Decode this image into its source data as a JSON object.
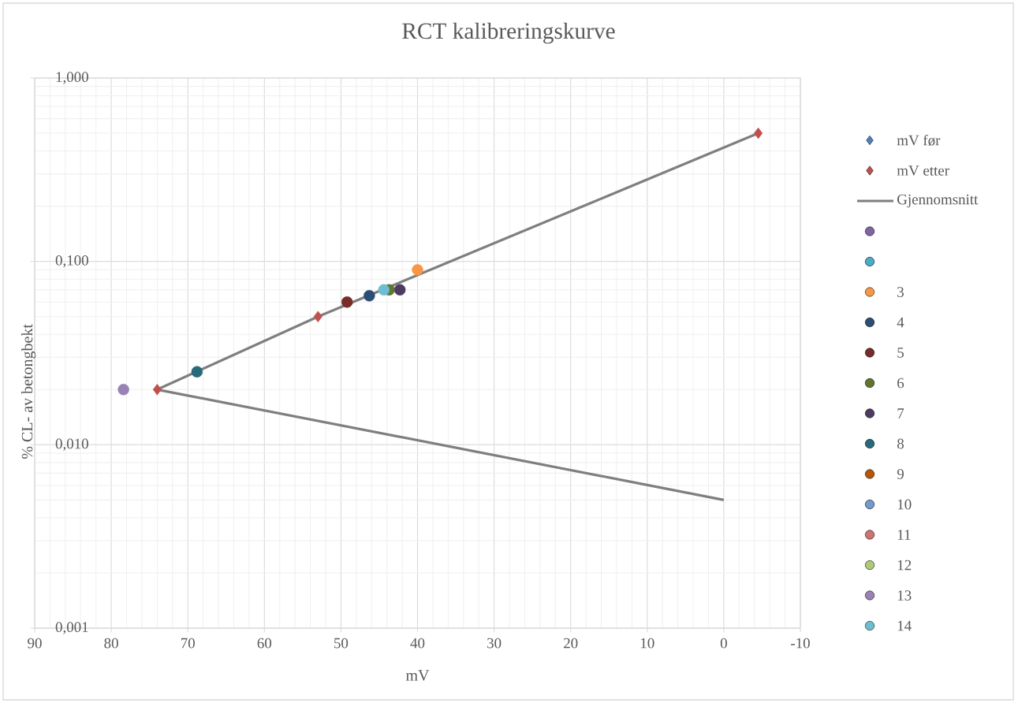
{
  "chart_data": {
    "type": "scatter",
    "title": "RCT kalibreringskurve",
    "xlabel": "mV",
    "ylabel": "% CL- av betongbekt",
    "log": "y",
    "grid": true,
    "legend": "right",
    "xlim": [
      90,
      -10
    ],
    "xticks": [
      90,
      80,
      70,
      60,
      50,
      40,
      30,
      20,
      10,
      0,
      -10
    ],
    "ylim": [
      0.001,
      1
    ],
    "yticks": [
      {
        "value": 0.001,
        "label": "0,001"
      },
      {
        "value": 0.01,
        "label": "0,010"
      },
      {
        "value": 0.1,
        "label": "0,100"
      },
      {
        "value": 1,
        "label": "1,000"
      }
    ],
    "series": [
      {
        "name": "mV før",
        "marker": "diamond",
        "color": "#4f81bd",
        "x": [
          null
        ],
        "values": [
          null
        ]
      },
      {
        "name": "mV etter",
        "marker": "diamond",
        "color": "#c0504d",
        "x": [
          74,
          53,
          -4.5
        ],
        "values": [
          0.02,
          0.05,
          0.5
        ]
      },
      {
        "name": "Gjennomsnitt",
        "type": "line",
        "marker": "none",
        "line_style": "solid",
        "color": "#7f7f7f",
        "x": [
          0,
          74,
          53,
          -4.5
        ],
        "values": [
          0.005,
          0.02,
          0.05,
          0.5
        ]
      },
      {
        "marker": "circle",
        "color": "#8064a2",
        "x": [
          null
        ],
        "values": [
          null
        ]
      },
      {
        "marker": "circle",
        "color": "#4bacc6",
        "x": [
          null
        ],
        "values": [
          null
        ]
      },
      {
        "name": "3",
        "type": "scatter",
        "marker": "circle",
        "color": "#f79646",
        "x": [
          40
        ],
        "values": [
          0.09
        ]
      },
      {
        "name": "4",
        "type": "scatter",
        "marker": "circle",
        "color": "#2c4d75",
        "x": [
          46.3
        ],
        "values": [
          0.065
        ]
      },
      {
        "name": "5",
        "type": "scatter",
        "marker": "circle",
        "color": "#772c2a",
        "x": [
          49.2
        ],
        "values": [
          0.06
        ]
      },
      {
        "name": "6",
        "type": "scatter",
        "marker": "circle",
        "color": "#5f7530",
        "x": [
          43.7
        ],
        "values": [
          0.07
        ]
      },
      {
        "name": "7",
        "type": "scatter",
        "marker": "circle",
        "color": "#4d3b62",
        "x": [
          42.3
        ],
        "values": [
          0.07
        ]
      },
      {
        "name": "8",
        "type": "scatter",
        "marker": "circle",
        "color": "#276a7c",
        "x": [
          68.8
        ],
        "values": [
          0.025
        ]
      },
      {
        "name": "9",
        "type": "scatter",
        "marker": "circle",
        "color": "#b65708",
        "x": [
          null
        ],
        "values": [
          null
        ]
      },
      {
        "name": "10",
        "type": "scatter",
        "marker": "circle",
        "color": "#729aca",
        "x": [
          null
        ],
        "values": [
          null
        ]
      },
      {
        "name": "11",
        "type": "scatter",
        "marker": "circle",
        "color": "#cd7371",
        "x": [
          null
        ],
        "values": [
          null
        ]
      },
      {
        "name": "12",
        "type": "scatter",
        "marker": "circle",
        "color": "#afc97a",
        "x": [
          null
        ],
        "values": [
          null
        ]
      },
      {
        "name": "13",
        "type": "scatter",
        "marker": "circle",
        "color": "#9983b5",
        "x": [
          78.4
        ],
        "values": [
          0.02
        ]
      },
      {
        "name": "14",
        "type": "scatter",
        "marker": "circle",
        "color": "#6fbdd1",
        "x": [
          44.4
        ],
        "values": [
          0.07
        ]
      }
    ]
  }
}
